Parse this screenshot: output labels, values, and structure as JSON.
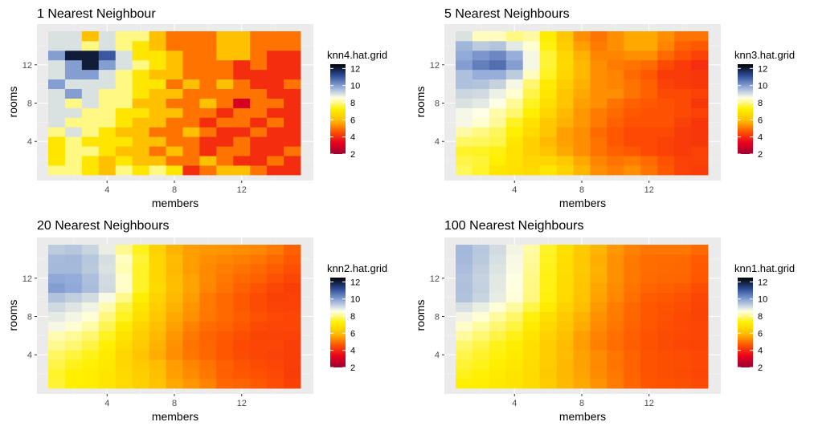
{
  "chart_data": [
    {
      "type": "heatmap",
      "title": "1 Nearest Neighbour",
      "xlabel": "members",
      "ylabel": "rooms",
      "legend_title": "knn4.hat.grid",
      "k": 1,
      "xlim": [
        0.5,
        15.5
      ],
      "ylim": [
        0.5,
        15.5
      ],
      "xticks": [
        4,
        8,
        12
      ],
      "yticks": [
        4,
        8,
        12
      ],
      "legend_ticks": [
        12,
        10,
        8,
        6,
        4,
        2
      ],
      "colorbar_range": [
        2,
        12.5
      ],
      "legend_position": "right",
      "grid": true
    },
    {
      "type": "heatmap",
      "title": "5 Nearest Neighbours",
      "xlabel": "members",
      "ylabel": "rooms",
      "legend_title": "knn3.hat.grid",
      "k": 5,
      "xlim": [
        0.5,
        15.5
      ],
      "ylim": [
        0.5,
        15.5
      ],
      "xticks": [
        4,
        8,
        12
      ],
      "yticks": [
        4,
        8,
        12
      ],
      "legend_ticks": [
        12,
        10,
        8,
        6,
        4,
        2
      ],
      "colorbar_range": [
        2,
        12.5
      ],
      "legend_position": "right",
      "grid": true
    },
    {
      "type": "heatmap",
      "title": "20 Nearest Neighbours",
      "xlabel": "members",
      "ylabel": "rooms",
      "legend_title": "knn2.hat.grid",
      "k": 20,
      "xlim": [
        0.5,
        15.5
      ],
      "ylim": [
        0.5,
        15.5
      ],
      "xticks": [
        4,
        8,
        12
      ],
      "yticks": [
        4,
        8,
        12
      ],
      "legend_ticks": [
        12,
        10,
        8,
        6,
        4,
        2
      ],
      "colorbar_range": [
        2,
        12.5
      ],
      "legend_position": "right",
      "grid": true
    },
    {
      "type": "heatmap",
      "title": "100 Nearest Neighbours",
      "xlabel": "members",
      "ylabel": "rooms",
      "legend_title": "knn1.hat.grid",
      "k": 100,
      "xlim": [
        0.5,
        15.5
      ],
      "ylim": [
        0.5,
        15.5
      ],
      "xticks": [
        4,
        8,
        12
      ],
      "yticks": [
        4,
        8,
        12
      ],
      "legend_ticks": [
        12,
        10,
        8,
        6,
        4,
        2
      ],
      "colorbar_range": [
        2,
        12.5
      ],
      "legend_position": "right",
      "grid": true
    }
  ],
  "grid_values": [
    [
      8.0,
      8.0,
      7.0,
      6.0,
      8.0,
      7.0,
      8.0,
      7.0,
      4.0,
      5.0,
      6.0,
      6.0,
      5.0,
      4.0,
      4.0
    ],
    [
      7.0,
      8.0,
      7.0,
      6.0,
      7.0,
      6.0,
      6.0,
      5.0,
      5.0,
      6.0,
      5.0,
      4.0,
      4.0,
      5.0,
      4.0
    ],
    [
      7.0,
      8.0,
      8.0,
      7.0,
      6.0,
      6.0,
      5.0,
      6.0,
      5.0,
      4.0,
      5.0,
      5.0,
      4.0,
      4.0,
      5.0
    ],
    [
      7.0,
      8.0,
      7.0,
      7.0,
      7.0,
      6.0,
      6.0,
      5.0,
      5.0,
      4.0,
      4.0,
      5.0,
      4.0,
      4.0,
      4.0
    ],
    [
      8.0,
      9.0,
      8.0,
      7.0,
      6.0,
      6.0,
      5.0,
      5.0,
      6.0,
      5.0,
      4.0,
      4.0,
      5.0,
      4.0,
      4.0
    ],
    [
      9.0,
      8.0,
      8.0,
      8.0,
      7.0,
      6.0,
      6.0,
      5.0,
      5.0,
      4.0,
      5.0,
      5.0,
      4.0,
      5.0,
      4.0
    ],
    [
      9.0,
      9.0,
      8.0,
      8.0,
      7.0,
      7.0,
      6.0,
      6.0,
      5.0,
      5.0,
      4.0,
      5.0,
      5.0,
      4.0,
      4.0
    ],
    [
      9.0,
      8.0,
      9.0,
      8.0,
      8.0,
      6.0,
      6.0,
      5.0,
      5.0,
      6.0,
      5.0,
      3.0,
      5.0,
      5.0,
      4.0
    ],
    [
      9.0,
      10.0,
      9.0,
      8.0,
      8.0,
      7.0,
      6.0,
      6.0,
      5.0,
      5.0,
      5.0,
      5.0,
      5.0,
      4.0,
      4.0
    ],
    [
      10.0,
      9.0,
      9.0,
      9.0,
      8.0,
      7.0,
      7.0,
      5.0,
      6.0,
      5.0,
      6.0,
      5.0,
      4.0,
      4.0,
      5.0
    ],
    [
      9.0,
      10.0,
      10.0,
      9.0,
      8.0,
      7.0,
      6.0,
      6.0,
      5.0,
      5.0,
      5.0,
      4.0,
      4.0,
      4.0,
      4.0
    ],
    [
      9.0,
      10.0,
      12.0,
      10.0,
      9.0,
      8.0,
      7.0,
      6.0,
      5.0,
      5.0,
      5.0,
      4.0,
      5.0,
      4.0,
      4.0
    ],
    [
      10.0,
      12.0,
      12.0,
      11.0,
      9.0,
      7.0,
      7.0,
      6.0,
      5.0,
      5.0,
      6.0,
      6.0,
      5.0,
      4.0,
      4.0
    ],
    [
      9.0,
      9.0,
      8.0,
      9.0,
      8.0,
      7.0,
      6.0,
      5.0,
      5.0,
      5.0,
      6.0,
      6.0,
      5.0,
      5.0,
      5.0
    ],
    [
      9.0,
      9.0,
      6.0,
      9.0,
      8.0,
      8.0,
      6.0,
      5.0,
      5.0,
      5.0,
      6.0,
      6.0,
      5.0,
      5.0,
      5.0
    ]
  ],
  "colors": {
    "panel_bg": "#ebebeb",
    "grid_major": "#ffffff",
    "tick_text": "#4d4d4d",
    "scale": [
      "#9b0032",
      "#e8001e",
      "#ff5500",
      "#ffbe00",
      "#fff000",
      "#ffffe6",
      "#8ea7d8",
      "#2c4a96",
      "#000000"
    ]
  }
}
